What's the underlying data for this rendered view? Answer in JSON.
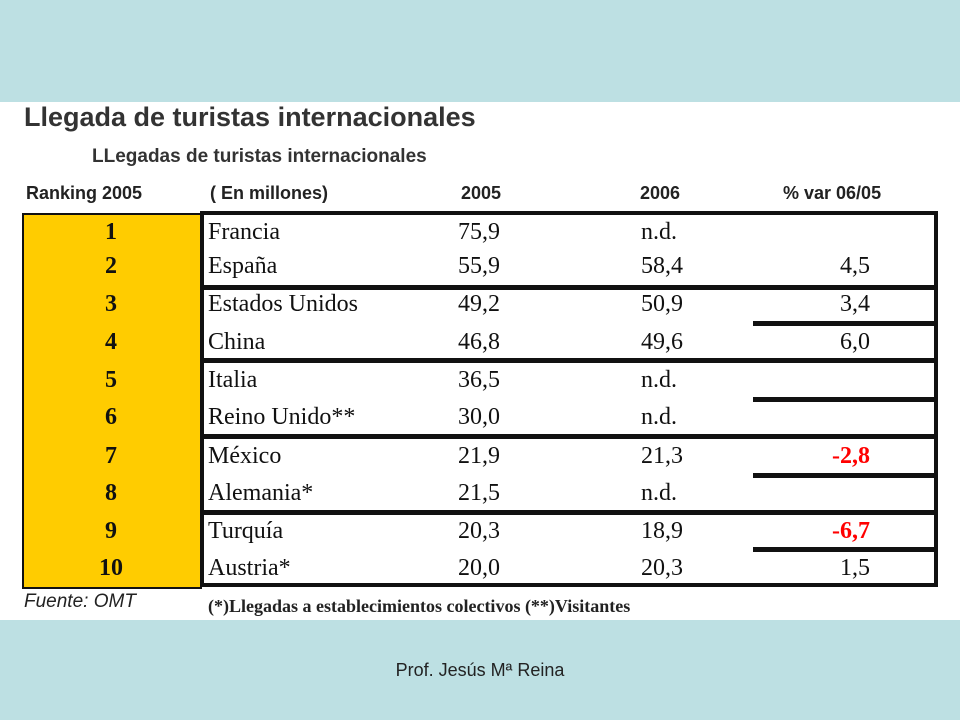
{
  "title": "Llegada de turistas internacionales",
  "subtitle": "LLegadas de turistas internacionales",
  "headers": {
    "ranking": "Ranking 2005",
    "unit": "( En millones)",
    "y2005": "2005",
    "y2006": "2006",
    "var": "% var 06/05"
  },
  "rows": [
    {
      "rank": "1",
      "country": "Francia",
      "v2005": "75,9",
      "v2006": "n.d.",
      "var": ""
    },
    {
      "rank": "2",
      "country": "España",
      "v2005": "55,9",
      "v2006": "58,4",
      "var": "4,5"
    },
    {
      "rank": "3",
      "country": "Estados Unidos",
      "v2005": "49,2",
      "v2006": "50,9",
      "var": "3,4"
    },
    {
      "rank": "4",
      "country": "China",
      "v2005": "46,8",
      "v2006": "49,6",
      "var": "6,0"
    },
    {
      "rank": "5",
      "country": "Italia",
      "v2005": "36,5",
      "v2006": "n.d.",
      "var": ""
    },
    {
      "rank": "6",
      "country": "Reino Unido**",
      "v2005": "30,0",
      "v2006": "n.d.",
      "var": ""
    },
    {
      "rank": "7",
      "country": "México",
      "v2005": "21,9",
      "v2006": "21,3",
      "var": "-2,8"
    },
    {
      "rank": "8",
      "country": "Alemania*",
      "v2005": "21,5",
      "v2006": "n.d.",
      "var": ""
    },
    {
      "rank": "9",
      "country": "Turquía",
      "v2005": "20,3",
      "v2006": "18,9",
      "var": "-6,7"
    },
    {
      "rank": "10",
      "country": "Austria*",
      "v2005": "20,0",
      "v2006": "20,3",
      "var": "1,5"
    }
  ],
  "footnotes": {
    "source": "Fuente: OMT",
    "note": "(*)Llegadas a establecimientos colectivos  (**)Visitantes"
  },
  "author": "Prof. Jesús Mª Reina",
  "colors": {
    "background": "#bde0e3",
    "rank_highlight": "#ffcc00",
    "negative": "#ff0000"
  }
}
